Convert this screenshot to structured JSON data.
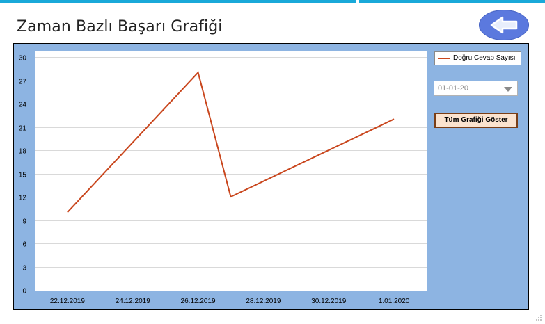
{
  "page": {
    "title": "Zaman Bazlı Başarı Grafiği"
  },
  "back_button": {
    "icon": "arrow-left-icon"
  },
  "legend": {
    "series_name": "Doğru Cevap Sayısı"
  },
  "date_select": {
    "value": "01-01-20"
  },
  "show_all_button": {
    "label": "Tüm Grafiği Göster"
  },
  "colors": {
    "panel_bg": "#8db4e2",
    "series_line": "#c9461d",
    "back_button_bg": "#5b79de",
    "top_bar": "#19a9d9"
  },
  "chart_data": {
    "type": "line",
    "x": [
      "22.12.2019",
      "26.12.2019",
      "27.12.2019",
      "1.01.2020"
    ],
    "series": [
      {
        "name": "Doğru Cevap Sayısı",
        "values": [
          10,
          28,
          12,
          22
        ]
      }
    ],
    "x_ticks": [
      "22.12.2019",
      "24.12.2019",
      "26.12.2019",
      "28.12.2019",
      "30.12.2019",
      "1.01.2020"
    ],
    "y_ticks": [
      0,
      3,
      6,
      9,
      12,
      15,
      18,
      21,
      24,
      27,
      30
    ],
    "ylim": [
      0,
      30
    ],
    "xlim": [
      "21.12.2019",
      "2.01.2020"
    ],
    "grid": true,
    "legend_position": "top-right",
    "title": "",
    "xlabel": "",
    "ylabel": ""
  }
}
